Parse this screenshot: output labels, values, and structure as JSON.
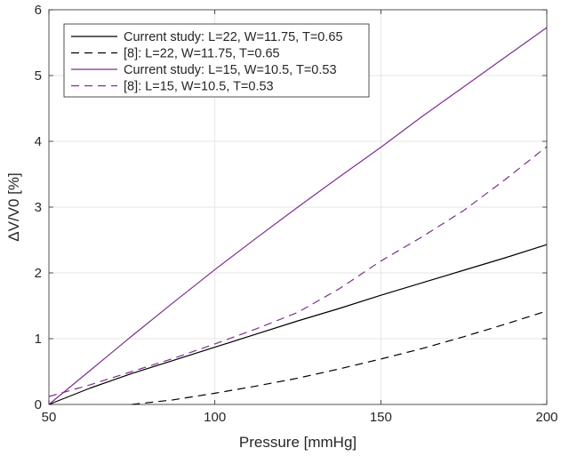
{
  "chart_data": {
    "type": "line",
    "title": "",
    "xlabel": "Pressure [mmHg]",
    "ylabel": "ΔV/V0 [%]",
    "xlim": [
      50,
      200
    ],
    "ylim": [
      0,
      6
    ],
    "xticks": [
      50,
      100,
      150,
      200
    ],
    "yticks": [
      0,
      1,
      2,
      3,
      4,
      5,
      6
    ],
    "grid": true,
    "legend_position": "top-left",
    "series": [
      {
        "name": "Current study: L=22, W=11.75, T=0.65",
        "color": "#000000",
        "style": "solid",
        "x": [
          50,
          62.5,
          75,
          87.5,
          100,
          112.5,
          125,
          137.5,
          150,
          162.5,
          175,
          187.5,
          200
        ],
        "y": [
          0.0,
          0.25,
          0.47,
          0.67,
          0.87,
          1.07,
          1.27,
          1.46,
          1.66,
          1.85,
          2.04,
          2.23,
          2.43
        ]
      },
      {
        "name": "[8]: L=22, W=11.75, T=0.65",
        "color": "#000000",
        "style": "dashed",
        "x": [
          75,
          87.5,
          100,
          112.5,
          125,
          137.5,
          150,
          162.5,
          175,
          187.5,
          200
        ],
        "y": [
          0.0,
          0.07,
          0.17,
          0.28,
          0.4,
          0.54,
          0.69,
          0.85,
          1.03,
          1.22,
          1.42
        ]
      },
      {
        "name": "Current study: L=15, W=10.5, T=0.53",
        "color": "#7e2f8e",
        "style": "solid",
        "x": [
          50,
          62.5,
          75,
          87.5,
          100,
          112.5,
          125,
          137.5,
          150,
          162.5,
          175,
          187.5,
          200
        ],
        "y": [
          0.0,
          0.52,
          1.04,
          1.55,
          2.05,
          2.53,
          3.0,
          3.46,
          3.91,
          4.38,
          4.83,
          5.28,
          5.73
        ]
      },
      {
        "name": "[8]: L=15, W=10.5, T=0.53",
        "color": "#7e2f8e",
        "style": "dashed",
        "x": [
          50,
          62.5,
          75,
          87.5,
          100,
          112.5,
          125,
          137.5,
          150,
          162.5,
          175,
          187.5,
          200
        ],
        "y": [
          0.12,
          0.3,
          0.5,
          0.7,
          0.92,
          1.15,
          1.4,
          1.76,
          2.18,
          2.55,
          2.95,
          3.42,
          3.92
        ]
      }
    ]
  }
}
